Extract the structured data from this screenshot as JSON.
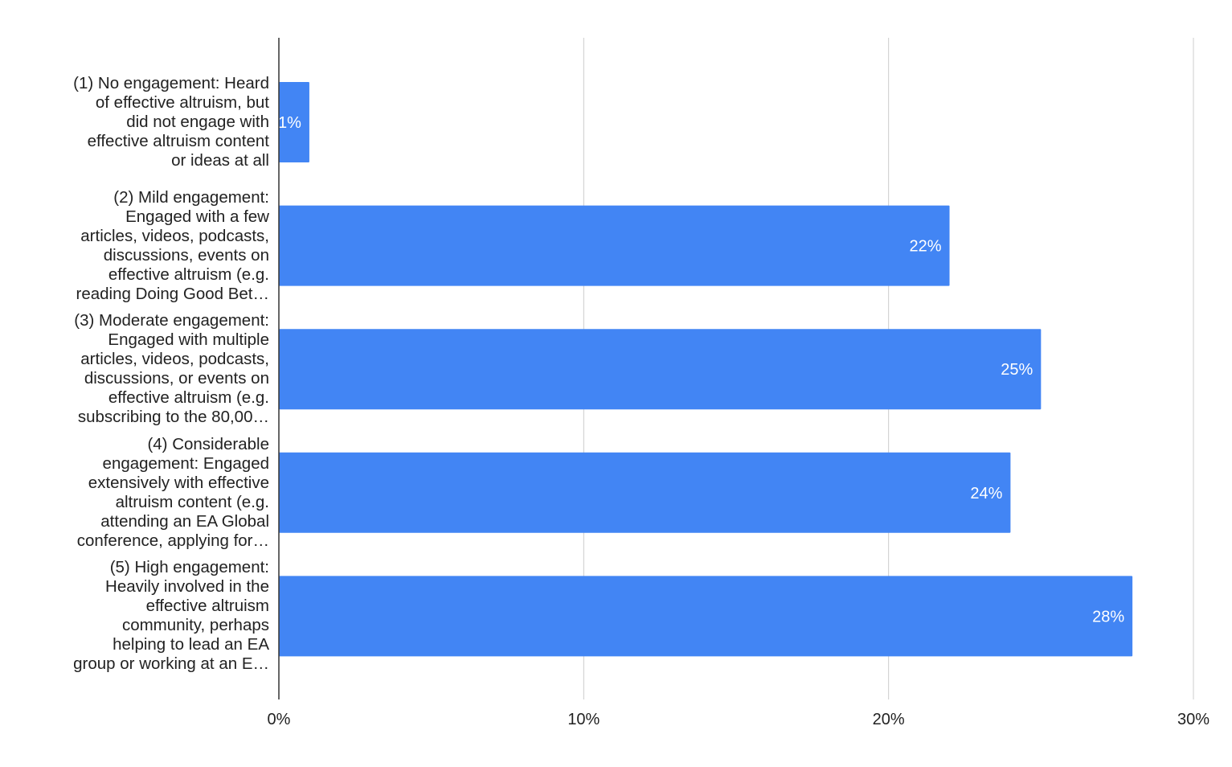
{
  "chart_data": {
    "type": "bar",
    "orientation": "horizontal",
    "categories": [
      "(1) No engagement: Heard\nof effective altruism, but\ndid not engage with\neffective altruism content\nor ideas at all",
      "(2) Mild engagement:\nEngaged with a few\narticles, videos, podcasts,\ndiscussions, events on\neffective altruism (e.g.\nreading Doing Good Bet…",
      "(3) Moderate engagement:\nEngaged with multiple\narticles, videos, podcasts,\ndiscussions, or events on\neffective altruism (e.g.\nsubscribing to the 80,00…",
      "(4) Considerable\nengagement: Engaged\nextensively with effective\naltruism content (e.g.\nattending an EA Global\nconference, applying for…",
      "(5) High engagement:\nHeavily involved in the\neffective altruism\ncommunity, perhaps\nhelping to lead an EA\ngroup or working at an E…"
    ],
    "values": [
      1,
      22,
      25,
      24,
      28
    ],
    "data_labels": [
      "1%",
      "22%",
      "25%",
      "24%",
      "28%"
    ],
    "xlim": [
      0,
      30
    ],
    "xticks": [
      0,
      10,
      20,
      30
    ],
    "xtick_labels": [
      "0%",
      "10%",
      "20%",
      "30%"
    ],
    "grid": true,
    "legend": "none",
    "colors": {
      "bar": "#4285f4",
      "grid": "#cccccc",
      "axis": "#333333",
      "text": "#222222",
      "bar_label": "#ffffff"
    }
  }
}
